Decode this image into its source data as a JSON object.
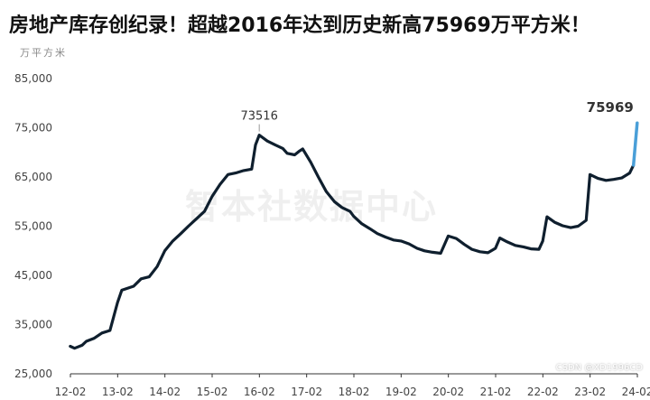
{
  "header": {
    "title": "房地产库存创纪录！超越2016年达到历史新高75969万平方米！",
    "unit": "万平方米",
    "watermark": "智本社数据中心",
    "source": "CSDN @XD1996CD"
  },
  "colors": {
    "line": "#0f1f2e",
    "highlight": "#4a9fd8"
  },
  "chart_data": {
    "type": "line",
    "title": "房地产库存创纪录！超越2016年达到历史新高75969万平方米！",
    "ylabel": "万平方米",
    "ylim": [
      25000,
      85000
    ],
    "yticks": [
      "85,000",
      "75,000",
      "65,000",
      "55,000",
      "45,000",
      "35,000",
      "25,000"
    ],
    "ytick_values": [
      85000,
      75000,
      65000,
      55000,
      45000,
      35000,
      25000
    ],
    "xlim": [
      2012.083,
      2024.083
    ],
    "xticks": [
      "12-02",
      "13-02",
      "14-02",
      "15-02",
      "16-02",
      "17-02",
      "18-02",
      "19-02",
      "20-02",
      "21-02",
      "22-02",
      "23-02",
      "24-02"
    ],
    "series": [
      {
        "values": [
          [
            2012.08,
            30600
          ],
          [
            2012.17,
            30200
          ],
          [
            2012.33,
            30800
          ],
          [
            2012.42,
            31600
          ],
          [
            2012.58,
            32200
          ],
          [
            2012.75,
            33300
          ],
          [
            2012.92,
            33800
          ],
          [
            2013.08,
            39500
          ],
          [
            2013.17,
            42000
          ],
          [
            2013.42,
            42800
          ],
          [
            2013.58,
            44300
          ],
          [
            2013.75,
            44700
          ],
          [
            2013.92,
            46800
          ],
          [
            2014.08,
            50000
          ],
          [
            2014.25,
            52000
          ],
          [
            2014.42,
            53500
          ],
          [
            2014.58,
            55000
          ],
          [
            2014.75,
            56500
          ],
          [
            2014.92,
            58000
          ],
          [
            2015.08,
            61000
          ],
          [
            2015.25,
            63500
          ],
          [
            2015.42,
            65500
          ],
          [
            2015.58,
            65800
          ],
          [
            2015.75,
            66300
          ],
          [
            2015.92,
            66600
          ],
          [
            2016.0,
            71500
          ],
          [
            2016.08,
            73516
          ],
          [
            2016.25,
            72300
          ],
          [
            2016.42,
            71500
          ],
          [
            2016.58,
            70800
          ],
          [
            2016.67,
            69800
          ],
          [
            2016.83,
            69500
          ],
          [
            2016.92,
            70200
          ],
          [
            2017.0,
            70700
          ],
          [
            2017.17,
            68000
          ],
          [
            2017.33,
            65000
          ],
          [
            2017.5,
            62000
          ],
          [
            2017.67,
            60000
          ],
          [
            2017.83,
            58800
          ],
          [
            2018.0,
            58000
          ],
          [
            2018.08,
            57000
          ],
          [
            2018.25,
            55500
          ],
          [
            2018.42,
            54500
          ],
          [
            2018.58,
            53500
          ],
          [
            2018.75,
            52800
          ],
          [
            2018.92,
            52200
          ],
          [
            2019.08,
            52000
          ],
          [
            2019.25,
            51400
          ],
          [
            2019.42,
            50500
          ],
          [
            2019.58,
            50000
          ],
          [
            2019.75,
            49700
          ],
          [
            2019.92,
            49500
          ],
          [
            2020.08,
            53000
          ],
          [
            2020.25,
            52500
          ],
          [
            2020.42,
            51300
          ],
          [
            2020.58,
            50300
          ],
          [
            2020.75,
            49800
          ],
          [
            2020.92,
            49600
          ],
          [
            2021.08,
            50500
          ],
          [
            2021.17,
            52600
          ],
          [
            2021.33,
            51800
          ],
          [
            2021.5,
            51100
          ],
          [
            2021.67,
            50800
          ],
          [
            2021.83,
            50400
          ],
          [
            2022.0,
            50300
          ],
          [
            2022.08,
            52000
          ],
          [
            2022.17,
            56900
          ],
          [
            2022.33,
            55800
          ],
          [
            2022.5,
            55100
          ],
          [
            2022.67,
            54700
          ],
          [
            2022.83,
            55000
          ],
          [
            2023.0,
            56200
          ],
          [
            2023.08,
            65500
          ],
          [
            2023.25,
            64700
          ],
          [
            2023.42,
            64300
          ],
          [
            2023.58,
            64500
          ],
          [
            2023.75,
            64800
          ],
          [
            2023.92,
            65800
          ],
          [
            2024.0,
            67400
          ]
        ]
      },
      {
        "highlight": true,
        "values": [
          [
            2024.0,
            67400
          ],
          [
            2024.08,
            75969
          ]
        ]
      }
    ],
    "annotations": [
      {
        "text": "73516",
        "x": 2016.08,
        "y": 73516,
        "highlight": false
      },
      {
        "text": "75969",
        "x": 2024.08,
        "y": 75969,
        "highlight": true
      }
    ]
  }
}
